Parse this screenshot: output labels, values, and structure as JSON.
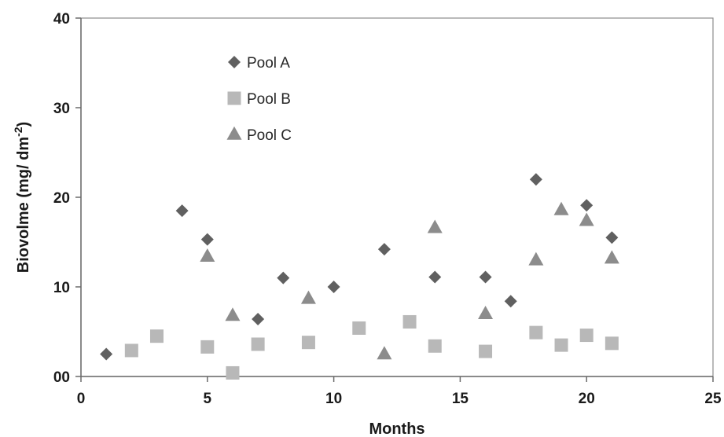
{
  "chart_data": {
    "type": "scatter",
    "title": "",
    "xlabel": "Months",
    "ylabel_main": "Biovolme (mg/ dm",
    "ylabel_sup": "-2",
    "ylabel_close": ")",
    "xlim": [
      0,
      25
    ],
    "ylim": [
      0,
      40
    ],
    "xticks": [
      0,
      5,
      10,
      15,
      20,
      25
    ],
    "yticks": [
      0,
      10,
      20,
      30,
      40
    ],
    "yticks_labels": [
      "00",
      "10",
      "20",
      "30",
      "40"
    ],
    "grid": false,
    "legend_position": "top-left-inside",
    "series": [
      {
        "name": "Pool A",
        "marker": "diamond",
        "color": "#606060",
        "points": [
          [
            1,
            2.5
          ],
          [
            4,
            18.5
          ],
          [
            5,
            15.3
          ],
          [
            7,
            6.4
          ],
          [
            8,
            11.0
          ],
          [
            10,
            10.0
          ],
          [
            12,
            14.2
          ],
          [
            14,
            11.1
          ],
          [
            16,
            11.1
          ],
          [
            17,
            8.4
          ],
          [
            18,
            22.0
          ],
          [
            20,
            19.1
          ],
          [
            21,
            15.5
          ]
        ]
      },
      {
        "name": "Pool B",
        "marker": "square",
        "color": "#b8b8b8",
        "points": [
          [
            2,
            2.9
          ],
          [
            3,
            4.5
          ],
          [
            5,
            3.3
          ],
          [
            6,
            0.4
          ],
          [
            7,
            3.6
          ],
          [
            9,
            3.8
          ],
          [
            11,
            5.4
          ],
          [
            13,
            6.1
          ],
          [
            14,
            3.4
          ],
          [
            16,
            2.8
          ],
          [
            18,
            4.9
          ],
          [
            19,
            3.5
          ],
          [
            20,
            4.6
          ],
          [
            21,
            3.7
          ]
        ]
      },
      {
        "name": "Pool C",
        "marker": "triangle",
        "color": "#8c8c8c",
        "points": [
          [
            5,
            13.4
          ],
          [
            6,
            6.8
          ],
          [
            9,
            8.7
          ],
          [
            12,
            2.5
          ],
          [
            14,
            16.6
          ],
          [
            16,
            7.0
          ],
          [
            18,
            13.0
          ],
          [
            19,
            18.6
          ],
          [
            20,
            17.4
          ],
          [
            21,
            13.2
          ]
        ]
      }
    ]
  }
}
